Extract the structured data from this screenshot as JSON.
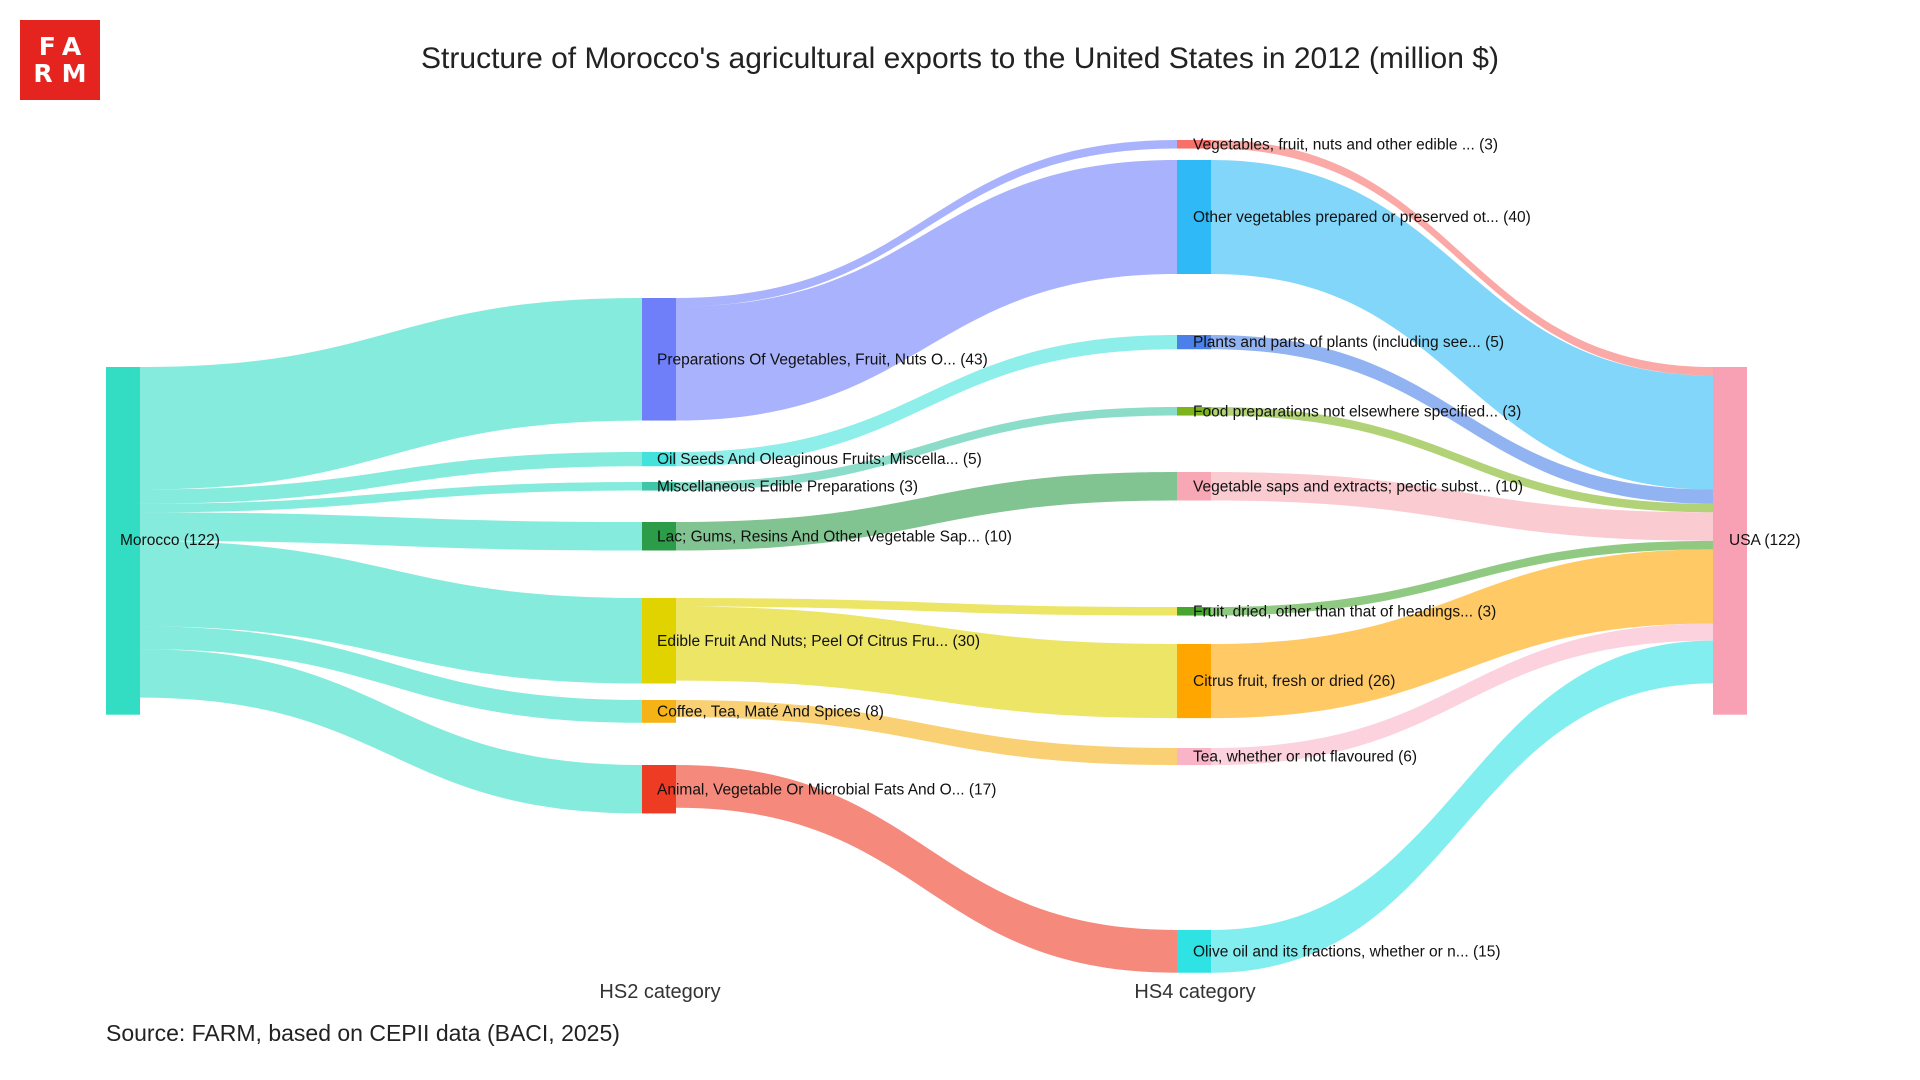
{
  "logo": {
    "line1": "FA",
    "line2": "RM"
  },
  "source": "Source: FARM, based on CEPII data (BACI, 2025)",
  "chart_data": {
    "type": "sankey",
    "title": "Structure of Morocco's agricultural exports to the United States in 2012 (million $)",
    "column_labels": [
      "HS2 category",
      "HS4 category"
    ],
    "source_node": {
      "label": "Morocco (122)",
      "value": 122,
      "color": "#33ddc4"
    },
    "target_node": {
      "label": "USA (122)",
      "value": 122,
      "color": "#f8a1b4"
    },
    "hs2": [
      {
        "label": "Preparations Of Vegetables, Fruit, Nuts O... (43)",
        "value": 43,
        "color": "#6f7ffa"
      },
      {
        "label": "Oil Seeds And Oleaginous Fruits; Miscella... (5)",
        "value": 5,
        "color": "#43e3dc"
      },
      {
        "label": "Miscellaneous Edible Preparations (3)",
        "value": 3,
        "color": "#3ec6a6"
      },
      {
        "label": "Lac; Gums, Resins And Other Vegetable Sap... (10)",
        "value": 10,
        "color": "#2d9c49"
      },
      {
        "label": "Edible Fruit And Nuts; Peel Of Citrus Fru... (30)",
        "value": 30,
        "color": "#e0d300"
      },
      {
        "label": "Coffee, Tea, Maté And Spices (8)",
        "value": 8,
        "color": "#f5b318"
      },
      {
        "label": "Animal, Vegetable Or Microbial Fats And O... (17)",
        "value": 17,
        "color": "#ee3b24"
      }
    ],
    "hs4": [
      {
        "label": "Vegetables, fruit, nuts and other edible ... (3)",
        "value": 3,
        "color": "#f8706a"
      },
      {
        "label": "Other vegetables prepared or preserved ot... (40)",
        "value": 40,
        "color": "#2fbaf7"
      },
      {
        "label": "Plants and parts of plants (including see... (5)",
        "value": 5,
        "color": "#4a80e8"
      },
      {
        "label": "Food preparations not elsewhere specified... (3)",
        "value": 3,
        "color": "#7db41d"
      },
      {
        "label": "Vegetable saps and extracts; pectic subst... (10)",
        "value": 10,
        "color": "#f8a8b4"
      },
      {
        "label": "Fruit, dried, other than that of headings... (3)",
        "value": 3,
        "color": "#46a62e"
      },
      {
        "label": "Citrus fruit, fresh or dried (26)",
        "value": 26,
        "color": "#ffa600"
      },
      {
        "label": "Tea, whether or not flavoured (6)",
        "value": 6,
        "color": "#f9b4c8"
      },
      {
        "label": "Olive oil and its fractions, whether or n... (15)",
        "value": 15,
        "color": "#2fe2e4"
      }
    ],
    "flows_hs2_to_hs4": [
      {
        "from": "Preparations Of Vegetables, Fruit, Nuts O... (43)",
        "to": "Vegetables, fruit, nuts and other edible ... (3)",
        "value": 3
      },
      {
        "from": "Preparations Of Vegetables, Fruit, Nuts O... (43)",
        "to": "Other vegetables prepared or preserved ot... (40)",
        "value": 40
      },
      {
        "from": "Oil Seeds And Oleaginous Fruits; Miscella... (5)",
        "to": "Plants and parts of plants (including see... (5)",
        "value": 5
      },
      {
        "from": "Miscellaneous Edible Preparations (3)",
        "to": "Food preparations not elsewhere specified... (3)",
        "value": 3
      },
      {
        "from": "Lac; Gums, Resins And Other Vegetable Sap... (10)",
        "to": "Vegetable saps and extracts; pectic subst... (10)",
        "value": 10
      },
      {
        "from": "Edible Fruit And Nuts; Peel Of Citrus Fru... (30)",
        "to": "Fruit, dried, other than that of headings... (3)",
        "value": 3
      },
      {
        "from": "Edible Fruit And Nuts; Peel Of Citrus Fru... (30)",
        "to": "Citrus fruit, fresh or dried (26)",
        "value": 26
      },
      {
        "from": "Coffee, Tea, Maté And Spices (8)",
        "to": "Tea, whether or not flavoured (6)",
        "value": 6
      },
      {
        "from": "Animal, Vegetable Or Microbial Fats And O... (17)",
        "to": "Olive oil and its fractions, whether or n... (15)",
        "value": 15
      }
    ]
  }
}
